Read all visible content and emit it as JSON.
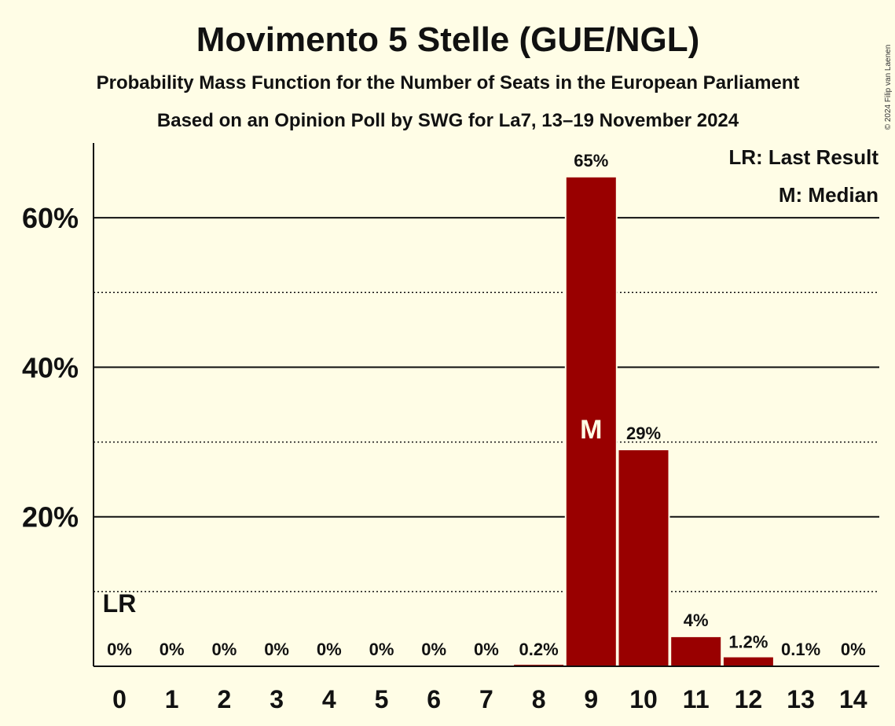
{
  "chart_data": {
    "type": "bar",
    "title": "Movimento 5 Stelle (GUE/NGL)",
    "subtitle": "Probability Mass Function for the Number of Seats in the European Parliament",
    "subtitle2": "Based on an Opinion Poll by SWG for La7, 13–19 November 2024",
    "copyright": "© 2024 Filip van Laenen",
    "categories": [
      "0",
      "1",
      "2",
      "3",
      "4",
      "5",
      "6",
      "7",
      "8",
      "9",
      "10",
      "11",
      "12",
      "13",
      "14"
    ],
    "values": [
      0,
      0,
      0,
      0,
      0,
      0,
      0,
      0,
      0.2,
      65.4,
      28.9,
      3.9,
      1.2,
      0.1,
      0
    ],
    "value_labels": [
      "0%",
      "0%",
      "0%",
      "0%",
      "0%",
      "0%",
      "0%",
      "0%",
      "0.2%",
      "65%",
      "29%",
      "4%",
      "1.2%",
      "0.1%",
      "0%"
    ],
    "ylim": [
      0,
      70
    ],
    "yticks_major": [
      20,
      40,
      60
    ],
    "ytick_labels": [
      "20%",
      "40%",
      "60%"
    ],
    "yticks_minor": [
      10,
      30,
      50
    ],
    "bar_color": "#990000",
    "last_result_index": 0,
    "last_result_marker": "LR",
    "median_index": 9,
    "median_marker": "M",
    "legend": [
      "LR: Last Result",
      "M: Median"
    ]
  }
}
